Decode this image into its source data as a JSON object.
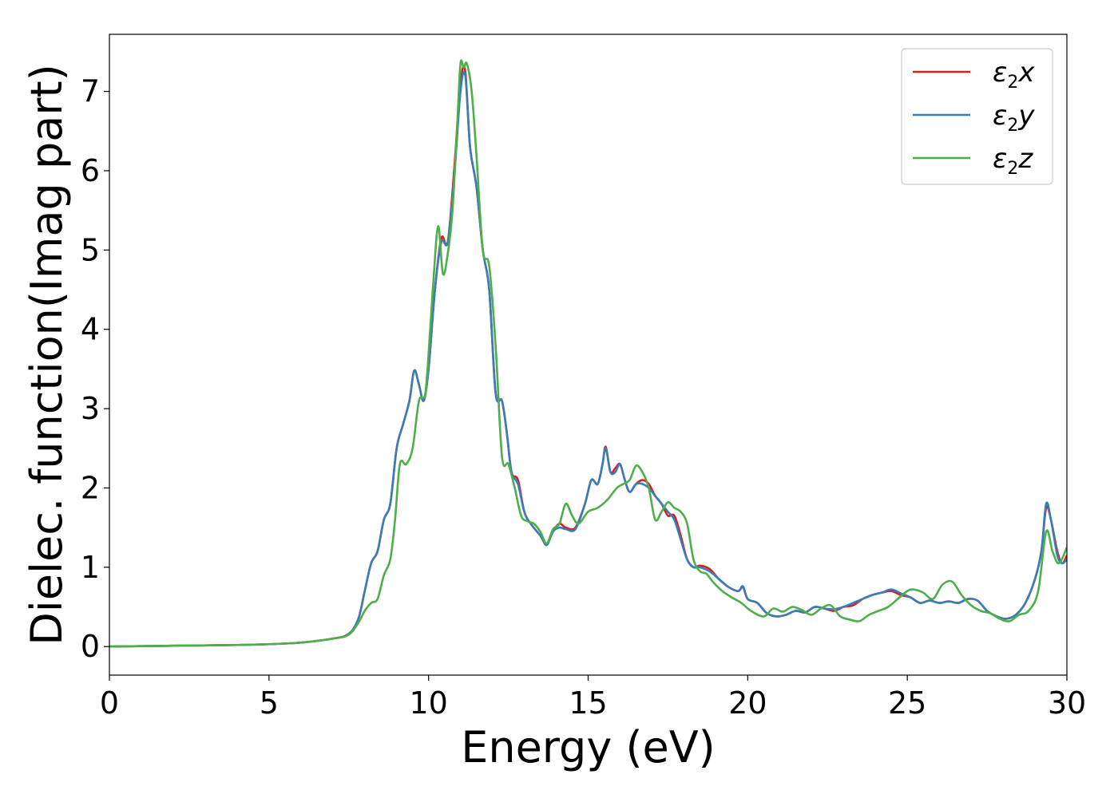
{
  "chart_data": {
    "type": "line",
    "xlabel": "Energy (eV)",
    "ylabel": "Dielec. function(Imag part)",
    "xlim": [
      0,
      30
    ],
    "ylim": [
      -0.36,
      7.72
    ],
    "xticks": [
      "0",
      "5",
      "10",
      "15",
      "20",
      "25",
      "30"
    ],
    "yticks": [
      "0",
      "1",
      "2",
      "3",
      "4",
      "5",
      "6",
      "7"
    ],
    "grid": false,
    "legend_position": "top-right",
    "series": [
      {
        "name": "ε2x",
        "legend": {
          "base": "ε",
          "sub": "2",
          "suffix": "x"
        },
        "color": "#e41a1c",
        "x": [
          0,
          2,
          4,
          5,
          6,
          7,
          7.5,
          7.8,
          8.0,
          8.2,
          8.4,
          8.6,
          8.8,
          9.0,
          9.2,
          9.4,
          9.55,
          9.7,
          9.85,
          10.0,
          10.2,
          10.4,
          10.6,
          10.8,
          11.0,
          11.15,
          11.3,
          11.5,
          11.7,
          11.9,
          12.1,
          12.3,
          12.45,
          12.6,
          12.8,
          13.0,
          13.2,
          13.5,
          13.7,
          13.9,
          14.1,
          14.3,
          14.6,
          14.9,
          15.1,
          15.3,
          15.45,
          15.55,
          15.7,
          15.85,
          16.0,
          16.15,
          16.3,
          16.5,
          16.7,
          16.9,
          17.1,
          17.3,
          17.5,
          17.7,
          17.9,
          18.1,
          18.3,
          18.5,
          18.8,
          19.1,
          19.4,
          19.7,
          19.85,
          20.0,
          20.3,
          20.6,
          20.9,
          21.2,
          21.5,
          21.8,
          22.1,
          22.4,
          22.7,
          23.0,
          23.3,
          23.6,
          23.9,
          24.2,
          24.5,
          24.8,
          25.1,
          25.4,
          25.7,
          26.0,
          26.3,
          26.6,
          26.9,
          27.2,
          27.5,
          27.8,
          28.1,
          28.4,
          28.7,
          29.0,
          29.2,
          29.35,
          29.5,
          29.7,
          29.85,
          30.0
        ],
        "y": [
          0.0,
          0.01,
          0.02,
          0.03,
          0.05,
          0.1,
          0.16,
          0.35,
          0.7,
          1.05,
          1.2,
          1.6,
          1.8,
          2.5,
          2.8,
          3.1,
          3.48,
          3.3,
          3.1,
          3.5,
          4.5,
          5.15,
          5.1,
          6.0,
          7.1,
          7.25,
          6.3,
          5.8,
          5.0,
          4.5,
          3.2,
          3.1,
          2.7,
          2.2,
          2.1,
          1.7,
          1.55,
          1.4,
          1.3,
          1.45,
          1.55,
          1.5,
          1.5,
          1.8,
          2.1,
          2.05,
          2.3,
          2.52,
          2.2,
          2.25,
          2.3,
          2.1,
          1.95,
          2.05,
          2.1,
          2.05,
          1.9,
          1.8,
          1.65,
          1.65,
          1.4,
          1.1,
          1.0,
          1.02,
          0.98,
          0.85,
          0.75,
          0.7,
          0.75,
          0.6,
          0.55,
          0.42,
          0.38,
          0.4,
          0.45,
          0.43,
          0.5,
          0.48,
          0.45,
          0.5,
          0.52,
          0.6,
          0.65,
          0.68,
          0.7,
          0.65,
          0.62,
          0.55,
          0.58,
          0.55,
          0.57,
          0.55,
          0.6,
          0.58,
          0.45,
          0.38,
          0.35,
          0.4,
          0.55,
          0.85,
          1.2,
          1.75,
          1.6,
          1.2,
          1.05,
          1.15
        ]
      },
      {
        "name": "ε2y",
        "legend": {
          "base": "ε",
          "sub": "2",
          "suffix": "y"
        },
        "color": "#377eb8",
        "x": [
          0,
          2,
          4,
          5,
          6,
          7,
          7.5,
          7.8,
          8.0,
          8.2,
          8.4,
          8.6,
          8.8,
          9.0,
          9.2,
          9.4,
          9.55,
          9.7,
          9.85,
          10.0,
          10.2,
          10.4,
          10.6,
          10.8,
          11.0,
          11.15,
          11.3,
          11.5,
          11.7,
          11.9,
          12.1,
          12.3,
          12.45,
          12.6,
          12.8,
          13.0,
          13.2,
          13.5,
          13.7,
          13.9,
          14.1,
          14.3,
          14.6,
          14.9,
          15.1,
          15.3,
          15.45,
          15.55,
          15.7,
          15.85,
          16.0,
          16.15,
          16.3,
          16.5,
          16.7,
          16.9,
          17.1,
          17.3,
          17.5,
          17.7,
          17.9,
          18.1,
          18.3,
          18.5,
          18.8,
          19.1,
          19.4,
          19.7,
          19.85,
          20.0,
          20.3,
          20.6,
          20.9,
          21.2,
          21.5,
          21.8,
          22.1,
          22.4,
          22.7,
          23.0,
          23.3,
          23.6,
          23.9,
          24.2,
          24.5,
          24.8,
          25.1,
          25.4,
          25.7,
          26.0,
          26.3,
          26.6,
          26.9,
          27.2,
          27.5,
          27.8,
          28.1,
          28.4,
          28.7,
          29.0,
          29.2,
          29.35,
          29.5,
          29.7,
          29.85,
          30.0
        ],
        "y": [
          0.0,
          0.01,
          0.02,
          0.03,
          0.05,
          0.1,
          0.16,
          0.35,
          0.7,
          1.05,
          1.2,
          1.6,
          1.8,
          2.5,
          2.8,
          3.1,
          3.48,
          3.3,
          3.1,
          3.5,
          4.5,
          5.1,
          5.1,
          5.9,
          7.0,
          7.2,
          6.3,
          5.8,
          5.0,
          4.5,
          3.2,
          3.1,
          2.7,
          2.2,
          2.05,
          1.7,
          1.55,
          1.4,
          1.28,
          1.45,
          1.5,
          1.48,
          1.48,
          1.8,
          2.1,
          2.05,
          2.3,
          2.5,
          2.2,
          2.2,
          2.3,
          2.1,
          1.95,
          2.05,
          2.05,
          2.0,
          1.9,
          1.8,
          1.7,
          1.6,
          1.35,
          1.1,
          1.0,
          1.0,
          0.95,
          0.85,
          0.75,
          0.7,
          0.76,
          0.6,
          0.55,
          0.42,
          0.38,
          0.4,
          0.45,
          0.43,
          0.5,
          0.48,
          0.47,
          0.5,
          0.55,
          0.6,
          0.65,
          0.68,
          0.72,
          0.67,
          0.62,
          0.55,
          0.58,
          0.55,
          0.57,
          0.55,
          0.6,
          0.58,
          0.45,
          0.38,
          0.35,
          0.4,
          0.55,
          0.85,
          1.2,
          1.8,
          1.6,
          1.15,
          1.05,
          1.1
        ]
      },
      {
        "name": "ε2z",
        "legend": {
          "base": "ε",
          "sub": "2",
          "suffix": "z"
        },
        "color": "#4daf4a",
        "x": [
          0,
          2,
          4,
          5,
          6,
          7,
          7.5,
          7.8,
          8.0,
          8.2,
          8.4,
          8.6,
          8.8,
          8.95,
          9.1,
          9.3,
          9.5,
          9.7,
          9.9,
          10.05,
          10.15,
          10.3,
          10.45,
          10.6,
          10.75,
          10.9,
          11.0,
          11.1,
          11.2,
          11.35,
          11.5,
          11.7,
          11.9,
          12.1,
          12.3,
          12.5,
          12.7,
          12.9,
          13.1,
          13.3,
          13.5,
          13.7,
          13.9,
          14.1,
          14.3,
          14.5,
          14.7,
          15.0,
          15.3,
          15.6,
          15.9,
          16.1,
          16.3,
          16.5,
          16.7,
          16.9,
          17.1,
          17.3,
          17.5,
          17.7,
          17.9,
          18.1,
          18.3,
          18.5,
          18.7,
          18.9,
          19.2,
          19.5,
          19.8,
          20.1,
          20.5,
          20.8,
          21.1,
          21.4,
          21.7,
          22.0,
          22.3,
          22.6,
          22.9,
          23.2,
          23.5,
          23.8,
          24.1,
          24.4,
          24.7,
          25.0,
          25.2,
          25.5,
          25.8,
          26.1,
          26.4,
          26.7,
          27.0,
          27.3,
          27.6,
          27.9,
          28.2,
          28.5,
          28.8,
          29.1,
          29.35,
          29.55,
          29.75,
          30.0
        ],
        "y": [
          0.0,
          0.01,
          0.02,
          0.03,
          0.05,
          0.1,
          0.15,
          0.3,
          0.45,
          0.55,
          0.6,
          0.9,
          1.1,
          1.6,
          2.3,
          2.3,
          2.5,
          3.1,
          3.2,
          4.0,
          4.6,
          5.3,
          4.7,
          4.95,
          5.5,
          6.6,
          7.35,
          7.3,
          7.35,
          7.0,
          6.2,
          5.0,
          4.8,
          3.8,
          2.4,
          2.3,
          2.0,
          1.65,
          1.58,
          1.55,
          1.45,
          1.3,
          1.48,
          1.55,
          1.8,
          1.65,
          1.55,
          1.7,
          1.75,
          1.85,
          2.0,
          2.05,
          2.1,
          2.28,
          2.2,
          2.0,
          1.6,
          1.7,
          1.82,
          1.75,
          1.7,
          1.55,
          1.1,
          0.95,
          0.92,
          0.82,
          0.7,
          0.62,
          0.55,
          0.45,
          0.38,
          0.48,
          0.44,
          0.5,
          0.46,
          0.4,
          0.48,
          0.52,
          0.38,
          0.34,
          0.32,
          0.4,
          0.45,
          0.5,
          0.6,
          0.7,
          0.72,
          0.68,
          0.6,
          0.78,
          0.82,
          0.65,
          0.52,
          0.45,
          0.42,
          0.35,
          0.32,
          0.4,
          0.45,
          0.7,
          1.45,
          1.2,
          1.05,
          1.25
        ]
      }
    ]
  }
}
